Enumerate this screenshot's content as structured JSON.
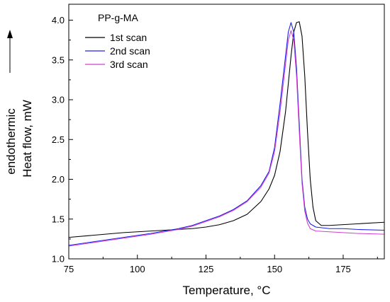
{
  "chart_data": {
    "type": "line",
    "title": "PP-g-MA",
    "xlabel": "Temperature, °C",
    "ylabel": "Heat flow, mW",
    "ylabel_secondary": "endothermic",
    "xlim": [
      75,
      190
    ],
    "ylim": [
      1.0,
      4.2
    ],
    "x_ticks": [
      75,
      100,
      125,
      150,
      175
    ],
    "y_ticks": [
      1.0,
      1.5,
      2.0,
      2.5,
      3.0,
      3.5,
      4.0
    ],
    "x_tick_labels": [
      "75",
      "100",
      "125",
      "150",
      "175"
    ],
    "y_tick_labels": [
      "1.0",
      "1.5",
      "2.0",
      "2.5",
      "3.0",
      "3.5",
      "4.0"
    ],
    "grid": false,
    "legend_position": "top-left",
    "series": [
      {
        "name": "1st scan",
        "color": "#000000",
        "x": [
          75,
          85,
          95,
          105,
          115,
          120,
          125,
          130,
          135,
          140,
          145,
          148,
          150,
          152,
          154,
          155,
          156,
          157,
          158,
          159,
          160,
          161,
          162,
          163,
          164,
          165,
          167,
          170,
          175,
          180,
          190
        ],
        "y": [
          1.27,
          1.3,
          1.33,
          1.35,
          1.37,
          1.38,
          1.4,
          1.43,
          1.48,
          1.56,
          1.72,
          1.88,
          2.05,
          2.35,
          2.85,
          3.2,
          3.55,
          3.85,
          3.97,
          3.98,
          3.8,
          3.3,
          2.6,
          2.0,
          1.65,
          1.48,
          1.42,
          1.42,
          1.43,
          1.44,
          1.46
        ]
      },
      {
        "name": "2nd scan",
        "color": "#2020e0",
        "x": [
          75,
          85,
          95,
          105,
          115,
          120,
          125,
          130,
          135,
          140,
          145,
          148,
          150,
          152,
          154,
          155,
          156,
          157,
          158,
          159,
          160,
          161,
          162,
          163,
          165,
          170,
          175,
          180,
          190
        ],
        "y": [
          1.17,
          1.22,
          1.27,
          1.32,
          1.38,
          1.42,
          1.48,
          1.54,
          1.62,
          1.73,
          1.92,
          2.1,
          2.4,
          2.95,
          3.55,
          3.85,
          3.97,
          3.85,
          3.4,
          2.7,
          2.0,
          1.65,
          1.5,
          1.44,
          1.4,
          1.38,
          1.38,
          1.37,
          1.36
        ]
      },
      {
        "name": "3rd scan",
        "color": "#d040d0",
        "x": [
          75,
          85,
          95,
          105,
          115,
          120,
          125,
          130,
          135,
          140,
          145,
          148,
          150,
          152,
          154,
          155,
          156,
          157,
          158,
          159,
          160,
          161,
          162,
          163,
          165,
          170,
          175,
          180,
          190
        ],
        "y": [
          1.16,
          1.21,
          1.26,
          1.31,
          1.37,
          1.41,
          1.47,
          1.53,
          1.61,
          1.72,
          1.9,
          2.08,
          2.35,
          2.85,
          3.45,
          3.75,
          3.87,
          3.75,
          3.3,
          2.6,
          1.95,
          1.6,
          1.45,
          1.38,
          1.35,
          1.34,
          1.33,
          1.32,
          1.31
        ]
      }
    ]
  }
}
